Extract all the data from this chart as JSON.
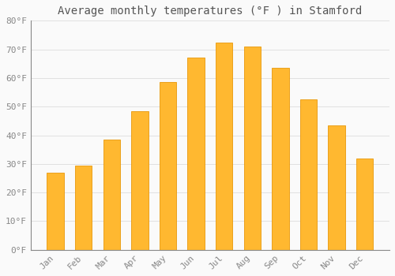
{
  "title": "Average monthly temperatures (°F ) in Stamford",
  "months": [
    "Jan",
    "Feb",
    "Mar",
    "Apr",
    "May",
    "Jun",
    "Jul",
    "Aug",
    "Sep",
    "Oct",
    "Nov",
    "Dec"
  ],
  "temperatures": [
    27,
    29.5,
    38.5,
    48.5,
    58.5,
    67,
    72.5,
    71,
    63.5,
    52.5,
    43.5,
    32
  ],
  "bar_color_left": "#FFA500",
  "bar_color_right": "#FFD060",
  "bar_edge_color": "#E8A000",
  "background_color": "#FAFAFA",
  "grid_color": "#DDDDDD",
  "text_color": "#888888",
  "spine_color": "#888888",
  "ylim": [
    0,
    80
  ],
  "yticks": [
    0,
    10,
    20,
    30,
    40,
    50,
    60,
    70,
    80
  ],
  "ytick_labels": [
    "0°F",
    "10°F",
    "20°F",
    "30°F",
    "40°F",
    "50°F",
    "60°F",
    "70°F",
    "80°F"
  ],
  "title_fontsize": 10,
  "tick_fontsize": 8,
  "bar_width": 0.6
}
